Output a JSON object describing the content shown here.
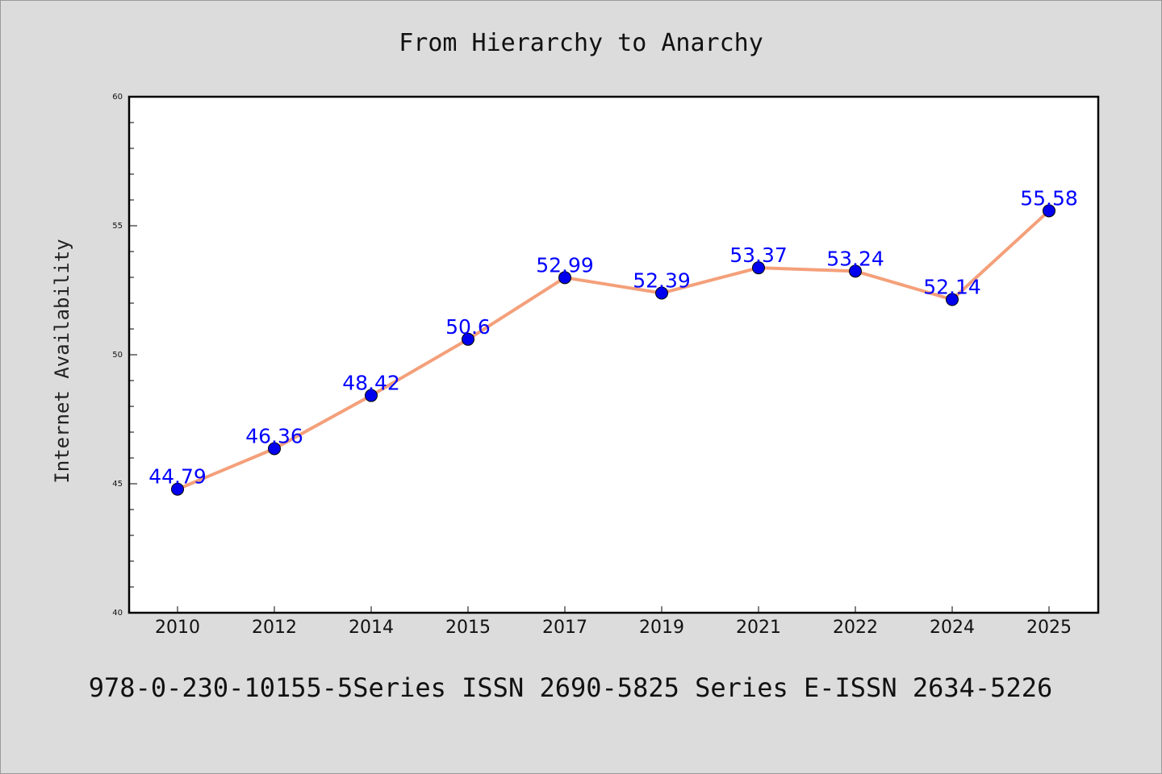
{
  "chart_data": {
    "type": "line",
    "title": "From Hierarchy to Anarchy",
    "ylabel": "Internet Availability",
    "xlabel": "",
    "categories": [
      "2010",
      "2012",
      "2014",
      "2015",
      "2017",
      "2019",
      "2021",
      "2022",
      "2024",
      "2025"
    ],
    "series": [
      {
        "values": [
          44.79,
          46.36,
          48.42,
          50.6,
          52.99,
          52.39,
          53.37,
          53.24,
          52.14,
          55.58
        ],
        "data_labels": [
          "44.79",
          "46.36",
          "48.42",
          "50.6",
          "52.99",
          "52.39",
          "53.37",
          "53.24",
          "52.14",
          "55.58"
        ],
        "line_color": "#f4a07a",
        "marker_color": "#0000ee"
      }
    ],
    "ylim": [
      40,
      60
    ],
    "yticks": [
      40,
      45,
      50,
      55,
      60
    ],
    "ytick_labels": [
      "40",
      "45",
      "50",
      "55",
      "60"
    ],
    "grid": false,
    "label_color": "#0000ff"
  },
  "footer": {
    "text": "978-0-230-10155-5Series ISSN 2690-5825 Series E-ISSN 2634-5226"
  }
}
